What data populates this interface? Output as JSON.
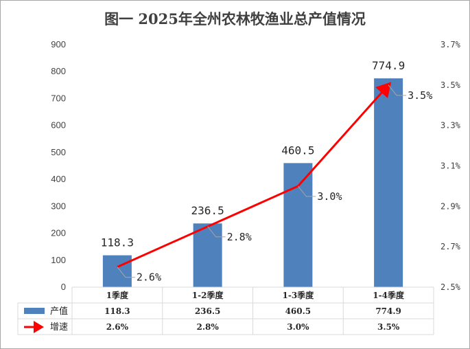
{
  "chart_data": {
    "type": "bar",
    "title": "图一  2025年全州农林牧渔业总产值情况",
    "categories": [
      "1季度",
      "1-2季度",
      "1-3季度",
      "1-4季度"
    ],
    "series": [
      {
        "name": "产值",
        "type": "bar",
        "axis": "left",
        "values": [
          118.3,
          236.5,
          460.5,
          774.9
        ],
        "labels": [
          "118.3",
          "236.5",
          "460.5",
          "774.9"
        ],
        "table_values": [
          "118.3",
          "236.5",
          "460.5",
          "774.9"
        ]
      },
      {
        "name": "增速",
        "type": "line",
        "axis": "right",
        "values": [
          2.6,
          2.8,
          3.0,
          3.5
        ],
        "labels": [
          "2.6%",
          "2.8%",
          "3.0%",
          "3.5%"
        ],
        "table_values": [
          "2.6%",
          "2.8%",
          "3.0%",
          "3.5%"
        ]
      }
    ],
    "left_axis": {
      "ylim": [
        0,
        900
      ],
      "ticks": [
        "0",
        "100",
        "200",
        "300",
        "400",
        "500",
        "600",
        "700",
        "800",
        "900"
      ]
    },
    "right_axis": {
      "ylim": [
        2.5,
        3.7
      ],
      "ticks": [
        "2.5%",
        "2.7%",
        "2.9%",
        "3.1%",
        "3.3%",
        "3.5%",
        "3.7%"
      ]
    },
    "colors": {
      "bar": "#4f81bd",
      "line": "#ff0000",
      "leader": "#a6a6a6",
      "grid": "#d9d9d9"
    },
    "legend": "data-table-bottom"
  }
}
